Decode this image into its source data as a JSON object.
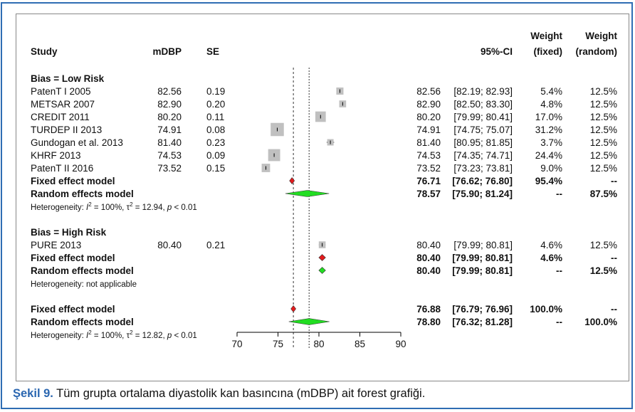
{
  "chart_data": {
    "type": "forest",
    "columns": {
      "study": "Study",
      "mean": "mDBP",
      "se": "SE",
      "ci": "95%-CI",
      "weight_fixed_top": "Weight",
      "weight_fixed_bottom": "(fixed)",
      "weight_random_top": "Weight",
      "weight_random_bottom": "(random)"
    },
    "xaxis": {
      "min": 70,
      "max": 90,
      "ticks": [
        "70",
        "75",
        "80",
        "85",
        "90"
      ]
    },
    "fixed_line_x": 76.88,
    "random_line_x": 78.8,
    "groups": [
      {
        "label": "Bias = Low Risk",
        "studies": [
          {
            "name": "PatenT I 2005",
            "mean": "82.56",
            "se": "0.19",
            "est": 82.56,
            "lo": 82.19,
            "hi": 82.93,
            "ci": "82.56",
            "ci_range": "[82.19; 82.93]",
            "wf": "5.4%",
            "wr": "12.5%",
            "wf_num": 5.4
          },
          {
            "name": "METSAR 2007",
            "mean": "82.90",
            "se": "0.20",
            "est": 82.9,
            "lo": 82.5,
            "hi": 83.3,
            "ci": "82.90",
            "ci_range": "[82.50; 83.30]",
            "wf": "4.8%",
            "wr": "12.5%",
            "wf_num": 4.8
          },
          {
            "name": "CREDIT 2011",
            "mean": "80.20",
            "se": "0.11",
            "est": 80.2,
            "lo": 79.99,
            "hi": 80.41,
            "ci": "80.20",
            "ci_range": "[79.99; 80.41]",
            "wf": "17.0%",
            "wr": "12.5%",
            "wf_num": 17.0
          },
          {
            "name": "TURDEP II 2013",
            "mean": "74.91",
            "se": "0.08",
            "est": 74.91,
            "lo": 74.75,
            "hi": 75.07,
            "ci": "74.91",
            "ci_range": "[74.75; 75.07]",
            "wf": "31.2%",
            "wr": "12.5%",
            "wf_num": 31.2
          },
          {
            "name": "Gundogan et al. 2013",
            "mean": "81.40",
            "se": "0.23",
            "est": 81.4,
            "lo": 80.95,
            "hi": 81.85,
            "ci": "81.40",
            "ci_range": "[80.95; 81.85]",
            "wf": "3.7%",
            "wr": "12.5%",
            "wf_num": 3.7
          },
          {
            "name": "KHRF 2013",
            "mean": "74.53",
            "se": "0.09",
            "est": 74.53,
            "lo": 74.35,
            "hi": 74.71,
            "ci": "74.53",
            "ci_range": "[74.35; 74.71]",
            "wf": "24.4%",
            "wr": "12.5%",
            "wf_num": 24.4
          },
          {
            "name": "PatenT II 2016",
            "mean": "73.52",
            "se": "0.15",
            "est": 73.52,
            "lo": 73.23,
            "hi": 73.81,
            "ci": "73.52",
            "ci_range": "[73.23; 73.81]",
            "wf": "9.0%",
            "wr": "12.5%",
            "wf_num": 9.0
          }
        ],
        "fixed": {
          "label": "Fixed effect model",
          "est": 76.71,
          "lo": 76.62,
          "hi": 76.8,
          "ci": "76.71",
          "ci_range": "[76.62; 76.80]",
          "wf": "95.4%",
          "wr": "--"
        },
        "random": {
          "label": "Random effects model",
          "est": 78.57,
          "lo": 75.9,
          "hi": 81.24,
          "ci": "78.57",
          "ci_range": "[75.90; 81.24]",
          "wf": "--",
          "wr": "87.5%"
        },
        "heterogeneity": {
          "prefix": "Heterogeneity: ",
          "i": "I",
          "i_sup": "2",
          "i_val": " = 100%, ",
          "tau": "τ",
          "tau_sup": "2",
          "tau_val": " = 12.94, ",
          "p": "p",
          "p_val": " < 0.01"
        }
      },
      {
        "label": "Bias = High Risk",
        "studies": [
          {
            "name": "PURE 2013",
            "mean": "80.40",
            "se": "0.21",
            "est": 80.4,
            "lo": 79.99,
            "hi": 80.81,
            "ci": "80.40",
            "ci_range": "[79.99; 80.81]",
            "wf": "4.6%",
            "wr": "12.5%",
            "wf_num": 4.6
          }
        ],
        "fixed": {
          "label": "Fixed effect model",
          "est": 80.4,
          "lo": 79.99,
          "hi": 80.81,
          "ci": "80.40",
          "ci_range": "[79.99; 80.81]",
          "wf": "4.6%",
          "wr": "--"
        },
        "random": {
          "label": "Random effects model",
          "est": 80.4,
          "lo": 79.99,
          "hi": 80.81,
          "ci": "80.40",
          "ci_range": "[79.99; 80.81]",
          "wf": "--",
          "wr": "12.5%"
        },
        "heterogeneity_text": "Heterogeneity: not applicable"
      }
    ],
    "overall": {
      "fixed": {
        "label": "Fixed effect model",
        "est": 76.88,
        "lo": 76.79,
        "hi": 76.96,
        "ci": "76.88",
        "ci_range": "[76.79; 76.96]",
        "wf": "100.0%",
        "wr": "--"
      },
      "random": {
        "label": "Random effects model",
        "est": 78.8,
        "lo": 76.32,
        "hi": 81.28,
        "ci": "78.80",
        "ci_range": "[76.32; 81.28]",
        "wf": "--",
        "wr": "100.0%"
      },
      "heterogeneity": {
        "prefix": "Heterogeneity: ",
        "i": "I",
        "i_sup": "2",
        "i_val": " = 100%, ",
        "tau": "τ",
        "tau_sup": "2",
        "tau_val": " = 12.82, ",
        "p": "p",
        "p_val": " < 0.01"
      }
    },
    "colors": {
      "square": "#c0c0c0",
      "fixed_diamond": "#e31a1c",
      "random_diamond": "#22dd22",
      "diamond_stroke": "#333333"
    }
  },
  "caption": {
    "lead": "Şekil 9.",
    "text": " Tüm grupta ortalama diyastolik kan basıncına (mDBP) ait forest grafiği."
  },
  "colors": {
    "frame_border": "#2f6db3",
    "caption_lead": "#2a66b0"
  }
}
